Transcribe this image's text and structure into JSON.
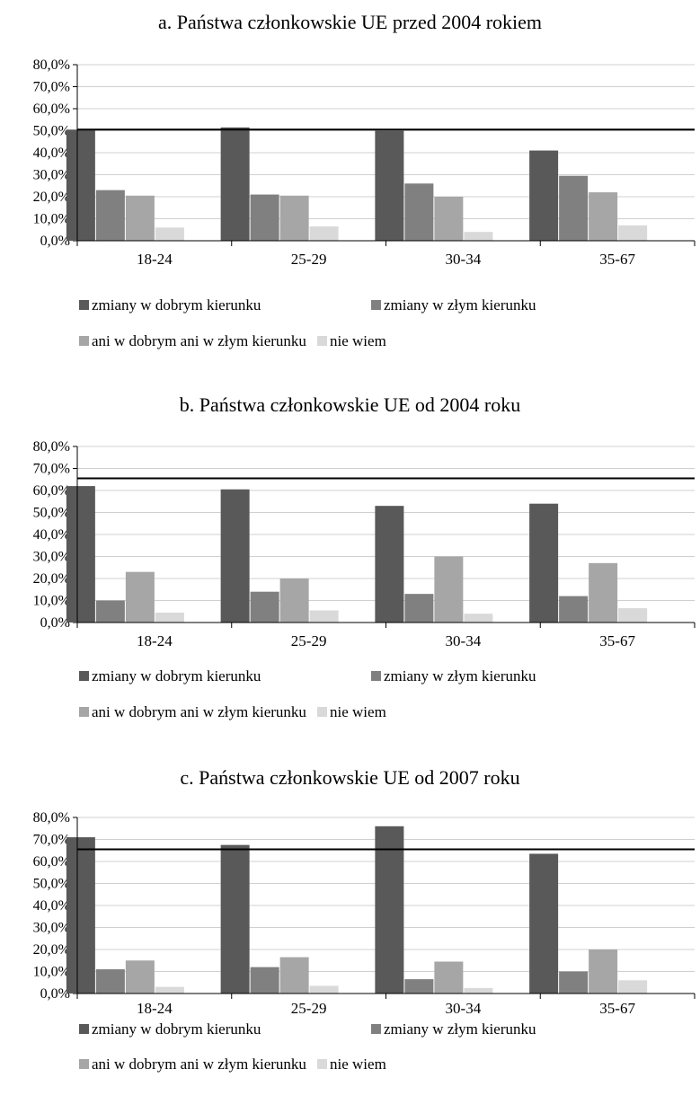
{
  "colors": {
    "zmiany w dobrym kierunku": "#595959",
    "zmiany w złym kierunku": "#808080",
    "ani w dobrym ani w złym kierunku": "#a6a6a6",
    "nie wiem": "#d9d9d9"
  },
  "chart_data": [
    {
      "type": "bar",
      "title": "a. Państwa członkowskie UE przed 2004 rokiem",
      "categories": [
        "18-24",
        "25-29",
        "30-34",
        "35-67"
      ],
      "yticks": [
        "0,0%",
        "10,0%",
        "20,0%",
        "30,0%",
        "40,0%",
        "50,0%",
        "60,0%",
        "70,0%",
        "80,0%"
      ],
      "ylim": [
        0,
        80
      ],
      "reference_line": 50.5,
      "grid": true,
      "legend_position": "bottom",
      "series": [
        {
          "name": "zmiany w dobrym kierunku",
          "values": [
            50.5,
            51.5,
            50.0,
            41.0
          ]
        },
        {
          "name": "zmiany w złym kierunku",
          "values": [
            23.0,
            21.0,
            26.0,
            29.5
          ]
        },
        {
          "name": "ani w dobrym ani w złym kierunku",
          "values": [
            20.5,
            20.5,
            20.0,
            22.0
          ]
        },
        {
          "name": "nie wiem",
          "values": [
            6.0,
            6.5,
            4.0,
            7.0
          ]
        }
      ]
    },
    {
      "type": "bar",
      "title": "b. Państwa członkowskie UE od 2004 roku",
      "categories": [
        "18-24",
        "25-29",
        "30-34",
        "35-67"
      ],
      "yticks": [
        "0,0%",
        "10,0%",
        "20,0%",
        "30,0%",
        "40,0%",
        "50,0%",
        "60,0%",
        "70,0%",
        "80,0%"
      ],
      "ylim": [
        0,
        80
      ],
      "reference_line": 65.5,
      "grid": true,
      "legend_position": "bottom",
      "series": [
        {
          "name": "zmiany w dobrym kierunku",
          "values": [
            62.0,
            60.5,
            53.0,
            54.0
          ]
        },
        {
          "name": "zmiany w złym kierunku",
          "values": [
            10.0,
            14.0,
            13.0,
            12.0
          ]
        },
        {
          "name": "ani w dobrym ani w złym kierunku",
          "values": [
            23.0,
            20.0,
            30.0,
            27.0
          ]
        },
        {
          "name": "nie wiem",
          "values": [
            4.5,
            5.5,
            4.0,
            6.5
          ]
        }
      ]
    },
    {
      "type": "bar",
      "title": "c. Państwa członkowskie UE od 2007 roku",
      "categories": [
        "18-24",
        "25-29",
        "30-34",
        "35-67"
      ],
      "yticks": [
        "0,0%",
        "10,0%",
        "20,0%",
        "30,0%",
        "40,0%",
        "50,0%",
        "60,0%",
        "70,0%",
        "80,0%"
      ],
      "ylim": [
        0,
        80
      ],
      "reference_line": 65.5,
      "grid": true,
      "legend_position": "bottom",
      "series": [
        {
          "name": "zmiany w dobrym kierunku",
          "values": [
            71.0,
            67.5,
            76.0,
            63.5
          ]
        },
        {
          "name": "zmiany w złym kierunku",
          "values": [
            11.0,
            12.0,
            6.5,
            10.0
          ]
        },
        {
          "name": "ani w dobrym ani w złym kierunku",
          "values": [
            15.0,
            16.5,
            14.5,
            20.0
          ]
        },
        {
          "name": "nie wiem",
          "values": [
            3.0,
            3.5,
            2.5,
            6.0
          ]
        }
      ]
    }
  ]
}
